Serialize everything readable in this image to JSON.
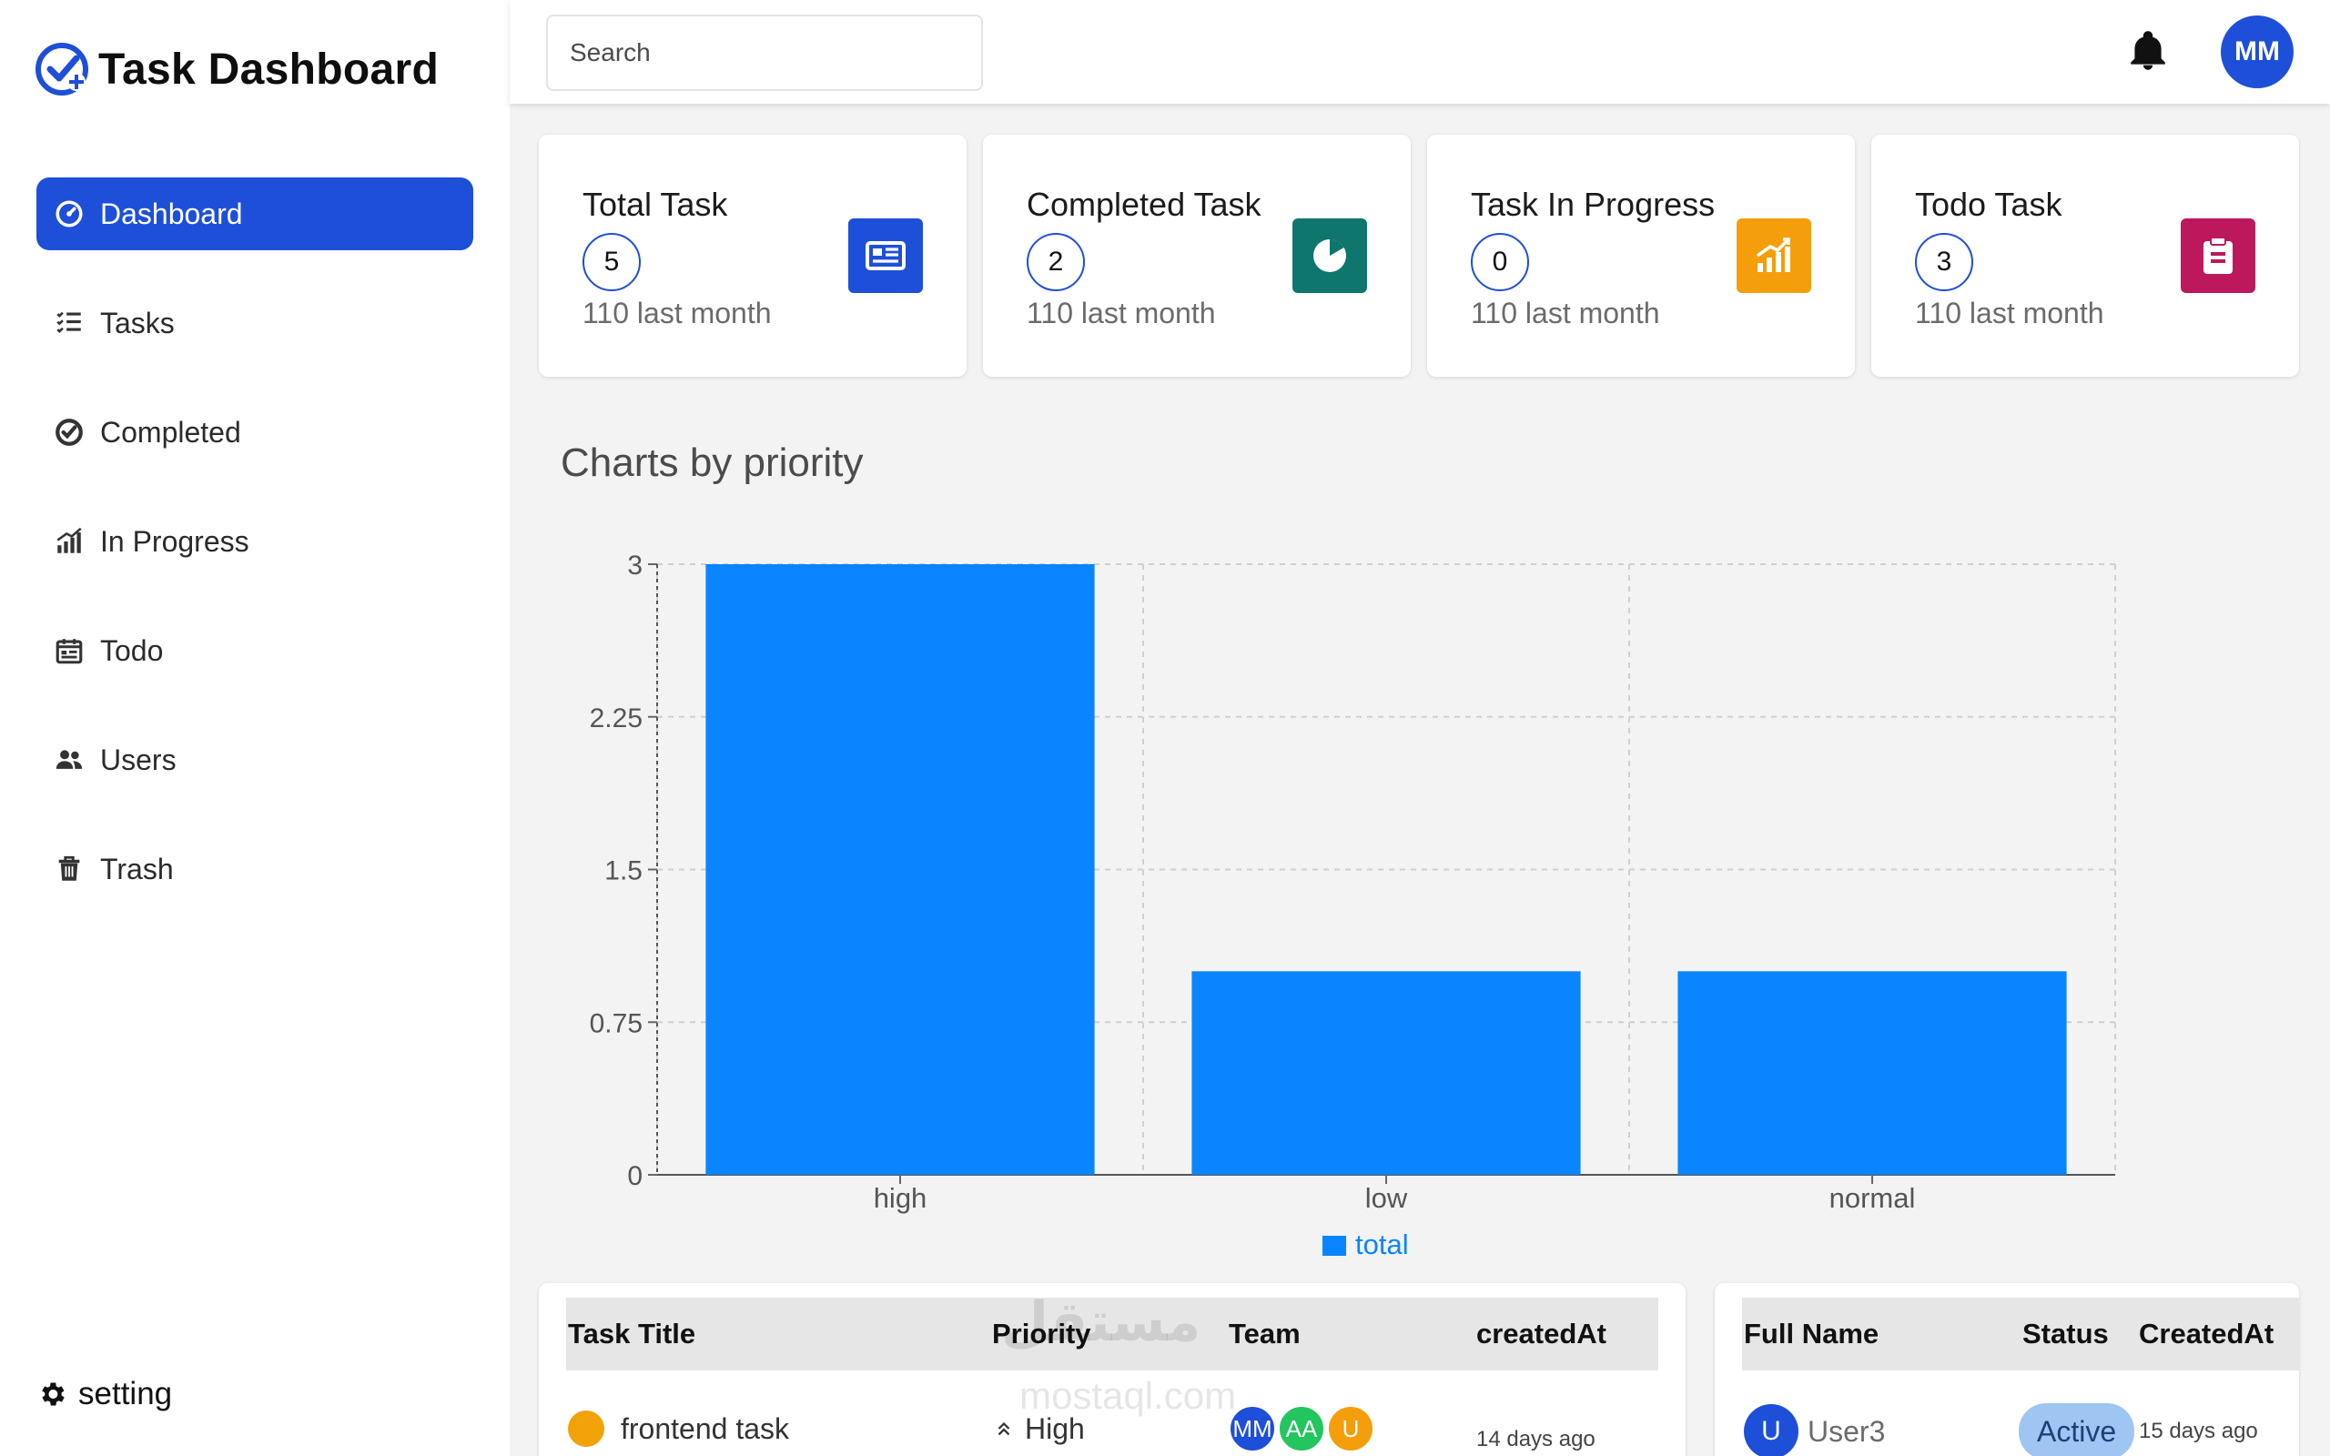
{
  "app": {
    "title": "Task Dashboard",
    "brand_color": "#1d4fd8"
  },
  "sidebar": {
    "items": [
      {
        "label": "Dashboard",
        "icon": "dashboard-icon",
        "active": true
      },
      {
        "label": "Tasks",
        "icon": "tasks-list-icon",
        "active": false
      },
      {
        "label": "Completed",
        "icon": "check-circle-icon",
        "active": false
      },
      {
        "label": "In Progress",
        "icon": "signal-bars-icon",
        "active": false
      },
      {
        "label": "Todo",
        "icon": "calendar-icon",
        "active": false
      },
      {
        "label": "Users",
        "icon": "users-icon",
        "active": false
      },
      {
        "label": "Trash",
        "icon": "trash-icon",
        "active": false
      }
    ],
    "setting_label": "setting"
  },
  "header": {
    "search_placeholder": "Search",
    "user_initials": "MM"
  },
  "stats": [
    {
      "title": "Total Task",
      "count": "5",
      "sub": "110 last month",
      "icon": "newspaper-icon",
      "color": "#1d4fd8"
    },
    {
      "title": "Completed Task",
      "count": "2",
      "sub": "110 last month",
      "icon": "pie-icon",
      "color": "#0f766e"
    },
    {
      "title": "Task In Progress",
      "count": "0",
      "sub": "110 last month",
      "icon": "chart-up-icon",
      "color": "#f59e0b"
    },
    {
      "title": "Todo Task",
      "count": "3",
      "sub": "110 last month",
      "icon": "clipboard-icon",
      "color": "#be185d"
    }
  ],
  "chart_heading": "Charts by priority",
  "chart_data": {
    "type": "bar",
    "title": "Charts by priority",
    "categories": [
      "high",
      "low",
      "normal"
    ],
    "series": [
      {
        "name": "total",
        "values": [
          3,
          1,
          1
        ],
        "color": "#0a84ff"
      }
    ],
    "yticks": [
      "0",
      "0.75",
      "1.5",
      "2.25",
      "3"
    ],
    "ylim": [
      0,
      3
    ],
    "grid": true,
    "legend": "bottom-center"
  },
  "tasks_table": {
    "headers": [
      "Task Title",
      "Priority",
      "Team",
      "createdAt"
    ],
    "rows": [
      {
        "title": "frontend task",
        "priority": "High",
        "team": [
          "MM",
          "AA",
          "U"
        ],
        "created": "14 days ago"
      }
    ]
  },
  "users_table": {
    "headers": [
      "Full Name",
      "Status",
      "CreatedAt"
    ],
    "rows": [
      {
        "initial": "U",
        "name": "User3",
        "status": "Active",
        "created": "15 days ago"
      }
    ]
  },
  "watermark": {
    "arabic": "مستقل",
    "latin": "mostaql.com"
  }
}
